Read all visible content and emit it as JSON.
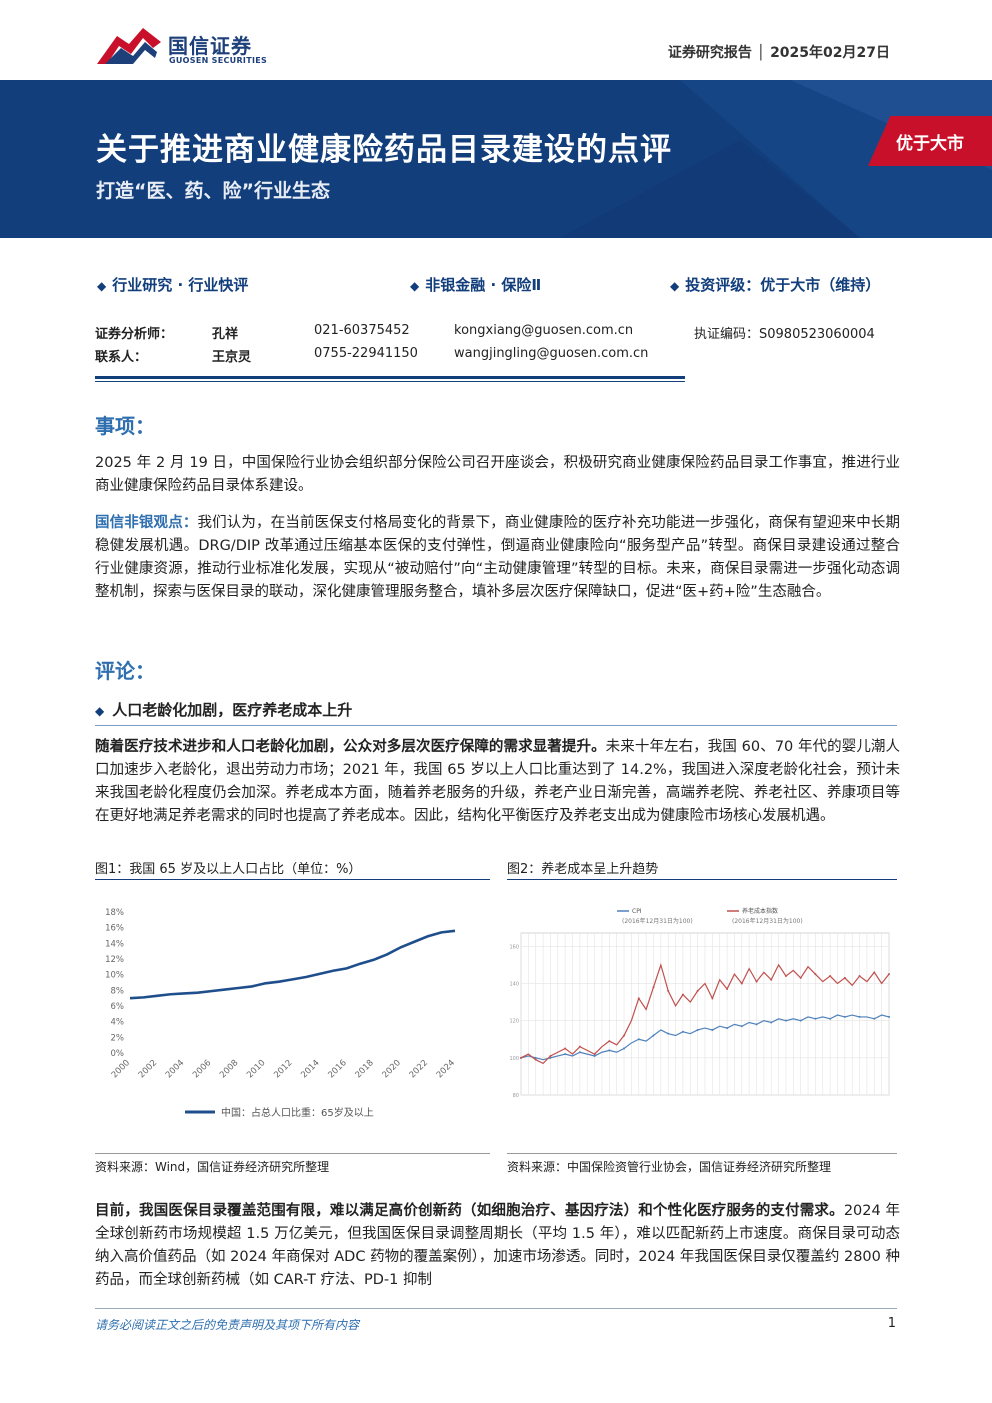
{
  "header": {
    "logo_cn": "国信证券",
    "logo_en": "GUOSEN SECURITIES",
    "report_type_date": "证券研究报告 │ 2025年02月27日"
  },
  "banner": {
    "title": "关于推进商业健康险药品目录建设的点评",
    "subtitle": "打造“医、药、险”行业生态",
    "rating": "优于大市"
  },
  "meta": {
    "category": "行业研究 · 行业快评",
    "sector": "非银金融 · 保险Ⅱ",
    "rating": "投资评级：优于大市（维持）"
  },
  "contacts": [
    {
      "role": "证券分析师：",
      "name": "孔祥",
      "phone": "021-60375452",
      "email": "kongxiang@guosen.com.cn",
      "extra": "执证编码：S0980523060004"
    },
    {
      "role": "联系人：",
      "name": "王京灵",
      "phone": "0755-22941150",
      "email": "wangjingling@guosen.com.cn",
      "extra": ""
    }
  ],
  "sections": {
    "event_title": "事项：",
    "event_text": "2025 年 2 月 19 日，中国保险行业协会组织部分保险公司召开座谈会，积极研究商业健康保险药品目录工作事宜，推进行业商业健康保险药品目录体系建设。",
    "view_label": "国信非银观点：",
    "view_text": "我们认为，在当前医保支付格局变化的背景下，商业健康险的医疗补充功能进一步强化，商保有望迎来中长期稳健发展机遇。DRG/DIP 改革通过压缩基本医保的支付弹性，倒逼商业健康险向“服务型产品”转型。商保目录建设通过整合行业健康资源，推动行业标准化发展，实现从“被动赔付”向“主动健康管理”转型的目标。未来，商保目录需进一步强化动态调整机制，探索与医保目录的联动，深化健康管理服务整合，填补多层次医疗保障缺口，促进“医+药+险”生态融合。",
    "comment_title": "评论：",
    "sub_title": "人口老龄化加剧，医疗养老成本上升",
    "para1_bold": "随着医疗技术进步和人口老龄化加剧，公众对多层次医疗保障的需求显著提升。",
    "para1_rest": "未来十年左右，我国 60、70 年代的婴儿潮人口加速步入老龄化，退出劳动力市场；2021 年，我国 65 岁以上人口比重达到了 14.2%，我国进入深度老龄化社会，预计未来我国老龄化程度仍会加深。养老成本方面，随着养老服务的升级，养老产业日渐完善，高端养老院、养老社区、养康项目等在更好地满足养老需求的同时也提高了养老成本。因此，结构化平衡医疗及养老支出成为健康险市场核心发展机遇。",
    "para2_bold": "目前，我国医保目录覆盖范围有限，难以满足高价创新药（如细胞治疗、基因疗法）和个性化医疗服务的支付需求。",
    "para2_rest": "2024 年全球创新药市场规模超 1.5 万亿美元，但我国医保目录调整周期长（平均 1.5 年），难以匹配新药上市速度。商保目录可动态纳入高价值药品（如 2024 年商保对 ADC 药物的覆盖案例），加速市场渗透。同时，2024 年我国医保目录仅覆盖约 2800 种药品，而全球创新药械（如 CAR-T 疗法、PD-1 抑制"
  },
  "figure1": {
    "title": "图1：我国 65 岁及以上人口占比（单位：%）",
    "source": "资料来源：Wind，国信证券经济研究所整理",
    "chart_data": {
      "type": "line",
      "title": "",
      "x": [
        2000,
        2001,
        2002,
        2003,
        2004,
        2005,
        2006,
        2007,
        2008,
        2009,
        2010,
        2011,
        2012,
        2013,
        2014,
        2015,
        2016,
        2017,
        2018,
        2019,
        2020,
        2021,
        2022,
        2023,
        2024
      ],
      "series": [
        {
          "name": "中国：占总人口比重：65岁及以上",
          "values": [
            7.0,
            7.1,
            7.3,
            7.5,
            7.6,
            7.7,
            7.9,
            8.1,
            8.3,
            8.5,
            8.9,
            9.1,
            9.4,
            9.7,
            10.1,
            10.5,
            10.8,
            11.4,
            11.9,
            12.6,
            13.5,
            14.2,
            14.9,
            15.4,
            15.6
          ]
        }
      ],
      "y_ticks": [
        "0%",
        "2%",
        "4%",
        "6%",
        "8%",
        "10%",
        "12%",
        "14%",
        "16%",
        "18%"
      ],
      "x_ticks": [
        "2000",
        "2002",
        "2004",
        "2006",
        "2008",
        "2010",
        "2012",
        "2014",
        "2016",
        "2018",
        "2020",
        "2022",
        "2024"
      ],
      "ylim": [
        0,
        18
      ],
      "legend": "bottom",
      "color": "#1f4e8c"
    }
  },
  "figure2": {
    "title": "图2：养老成本呈上升趋势",
    "source": "资料来源：中国保险资管行业协会，国信证券经济研究所整理",
    "chart_data": {
      "type": "line",
      "title": "",
      "legend": "top",
      "y_ticks": [
        "80",
        "100",
        "120",
        "140",
        "160"
      ],
      "ylim": [
        80,
        165
      ],
      "series": [
        {
          "name": "CPI",
          "note": "(2016年12月31日为100)",
          "color": "#4f81bd",
          "values": [
            100,
            101,
            100,
            99,
            100,
            101,
            102,
            101,
            103,
            102,
            101,
            103,
            104,
            103,
            105,
            108,
            110,
            109,
            112,
            115,
            113,
            112,
            114,
            113,
            115,
            116,
            115,
            117,
            116,
            118,
            117,
            119,
            118,
            120,
            119,
            121,
            120,
            121,
            120,
            122,
            121,
            122,
            121,
            123,
            122,
            123,
            122,
            122,
            121,
            123,
            122
          ]
        },
        {
          "name": "养老成本指数",
          "note": "(2016年12月31日为100)",
          "color": "#c0504d",
          "values": [
            100,
            102,
            99,
            97,
            101,
            103,
            105,
            102,
            106,
            104,
            102,
            106,
            109,
            107,
            112,
            120,
            132,
            126,
            138,
            150,
            136,
            128,
            134,
            130,
            136,
            140,
            132,
            142,
            137,
            145,
            140,
            148,
            141,
            146,
            142,
            150,
            144,
            147,
            143,
            149,
            145,
            141,
            144,
            140,
            143,
            139,
            144,
            141,
            146,
            140,
            145
          ]
        }
      ]
    }
  },
  "footer": {
    "disclaimer": "请务必阅读正文之后的免责声明及其项下所有内容",
    "page": "1"
  }
}
